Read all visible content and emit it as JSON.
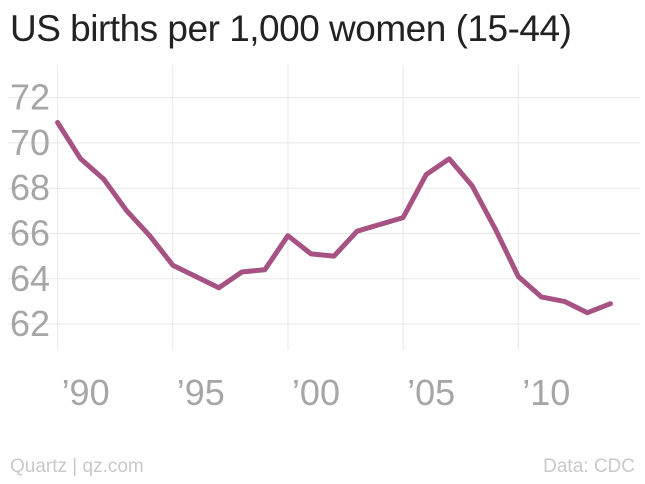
{
  "title": "US births per 1,000 women (15-44)",
  "footer": {
    "source_left": "Quartz | qz.com",
    "source_right": "Data: CDC"
  },
  "colors": {
    "line": "#a65384",
    "grid": "#e8e8e8",
    "tick_text": "#a6a6a6",
    "title": "#222222",
    "footer": "#c9c9c9"
  },
  "chart_data": {
    "type": "line",
    "title": "US births per 1,000 women (15-44)",
    "xlabel": "",
    "ylabel": "",
    "xlim": [
      1987.5,
      2015.5
    ],
    "ylim": [
      60.5,
      73
    ],
    "grid": true,
    "x_ticks": [
      1990,
      1995,
      2000,
      2005,
      2010
    ],
    "x_tick_labels": [
      "’90",
      "’95",
      "’00",
      "’05",
      "’10"
    ],
    "y_ticks": [
      62,
      64,
      66,
      68,
      70,
      72
    ],
    "y_tick_labels": [
      "62",
      "64",
      "66",
      "68",
      "70",
      "72"
    ],
    "series": [
      {
        "x": [
          1990,
          1991,
          1992,
          1993,
          1994,
          1995,
          1996,
          1997,
          1998,
          1999,
          2000,
          2001,
          2002,
          2003,
          2004,
          2005,
          2006,
          2007,
          2008,
          2009,
          2010,
          2011,
          2012,
          2013,
          2014
        ],
        "values": [
          70.9,
          69.3,
          68.4,
          67.0,
          65.9,
          64.6,
          64.1,
          63.6,
          64.3,
          64.4,
          65.9,
          65.1,
          65.0,
          66.1,
          66.4,
          66.7,
          68.6,
          69.3,
          68.1,
          66.2,
          64.1,
          63.2,
          63.0,
          62.5,
          62.9
        ]
      }
    ]
  }
}
